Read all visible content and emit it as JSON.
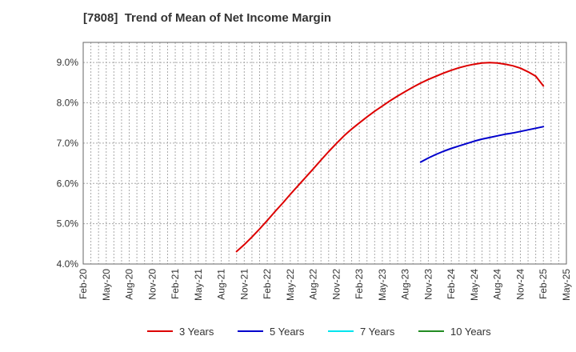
{
  "chart_data": {
    "type": "line",
    "title": "[7808]  Trend of Mean of Net Income Margin",
    "xlabel": "",
    "ylabel": "",
    "x_ticks": [
      "Feb-20",
      "May-20",
      "Aug-20",
      "Nov-20",
      "Feb-21",
      "May-21",
      "Aug-21",
      "Nov-21",
      "Feb-22",
      "May-22",
      "Aug-22",
      "Nov-22",
      "Feb-23",
      "May-23",
      "Aug-23",
      "Nov-23",
      "Feb-24",
      "May-24",
      "Aug-24",
      "Nov-24",
      "Feb-25",
      "May-25"
    ],
    "y_ticks": [
      "4.0%",
      "5.0%",
      "6.0%",
      "7.0%",
      "8.0%",
      "9.0%"
    ],
    "ylim": [
      4.0,
      9.5
    ],
    "y_unit": "%",
    "grid": true,
    "legend_position": "bottom",
    "series": [
      {
        "name": "3 Years",
        "color": "#dd0000",
        "x": [
          "Oct-21",
          "Nov-21",
          "Dec-21",
          "Jan-22",
          "Feb-22",
          "Mar-22",
          "Apr-22",
          "May-22",
          "Jun-22",
          "Jul-22",
          "Aug-22",
          "Sep-22",
          "Oct-22",
          "Nov-22",
          "Dec-22",
          "Jan-23",
          "Feb-23",
          "Mar-23",
          "Apr-23",
          "May-23",
          "Jun-23",
          "Jul-23",
          "Aug-23",
          "Sep-23",
          "Oct-23",
          "Nov-23",
          "Dec-23",
          "Jan-24",
          "Feb-24",
          "Mar-24",
          "Apr-24",
          "May-24",
          "Jun-24",
          "Jul-24",
          "Aug-24",
          "Sep-24",
          "Oct-24",
          "Nov-24",
          "Dec-24",
          "Jan-25",
          "Feb-25"
        ],
        "values": [
          4.31,
          4.48,
          4.67,
          4.87,
          5.08,
          5.3,
          5.51,
          5.73,
          5.94,
          6.15,
          6.36,
          6.58,
          6.79,
          6.99,
          7.18,
          7.35,
          7.5,
          7.65,
          7.79,
          7.92,
          8.05,
          8.17,
          8.28,
          8.39,
          8.49,
          8.58,
          8.66,
          8.74,
          8.81,
          8.87,
          8.92,
          8.96,
          8.99,
          9.0,
          8.99,
          8.96,
          8.92,
          8.86,
          8.77,
          8.66,
          8.42
        ]
      },
      {
        "name": "5 Years",
        "color": "#0000cc",
        "x": [
          "Oct-23",
          "Nov-23",
          "Dec-23",
          "Jan-24",
          "Feb-24",
          "Mar-24",
          "Apr-24",
          "May-24",
          "Jun-24",
          "Jul-24",
          "Aug-24",
          "Sep-24",
          "Oct-24",
          "Nov-24",
          "Dec-24",
          "Jan-25",
          "Feb-25"
        ],
        "values": [
          6.53,
          6.63,
          6.72,
          6.8,
          6.87,
          6.93,
          6.99,
          7.05,
          7.1,
          7.14,
          7.18,
          7.22,
          7.25,
          7.29,
          7.33,
          7.37,
          7.41
        ]
      },
      {
        "name": "7 Years",
        "color": "#00e5ee",
        "x": [],
        "values": []
      },
      {
        "name": "10 Years",
        "color": "#228b22",
        "x": [],
        "values": []
      }
    ]
  }
}
